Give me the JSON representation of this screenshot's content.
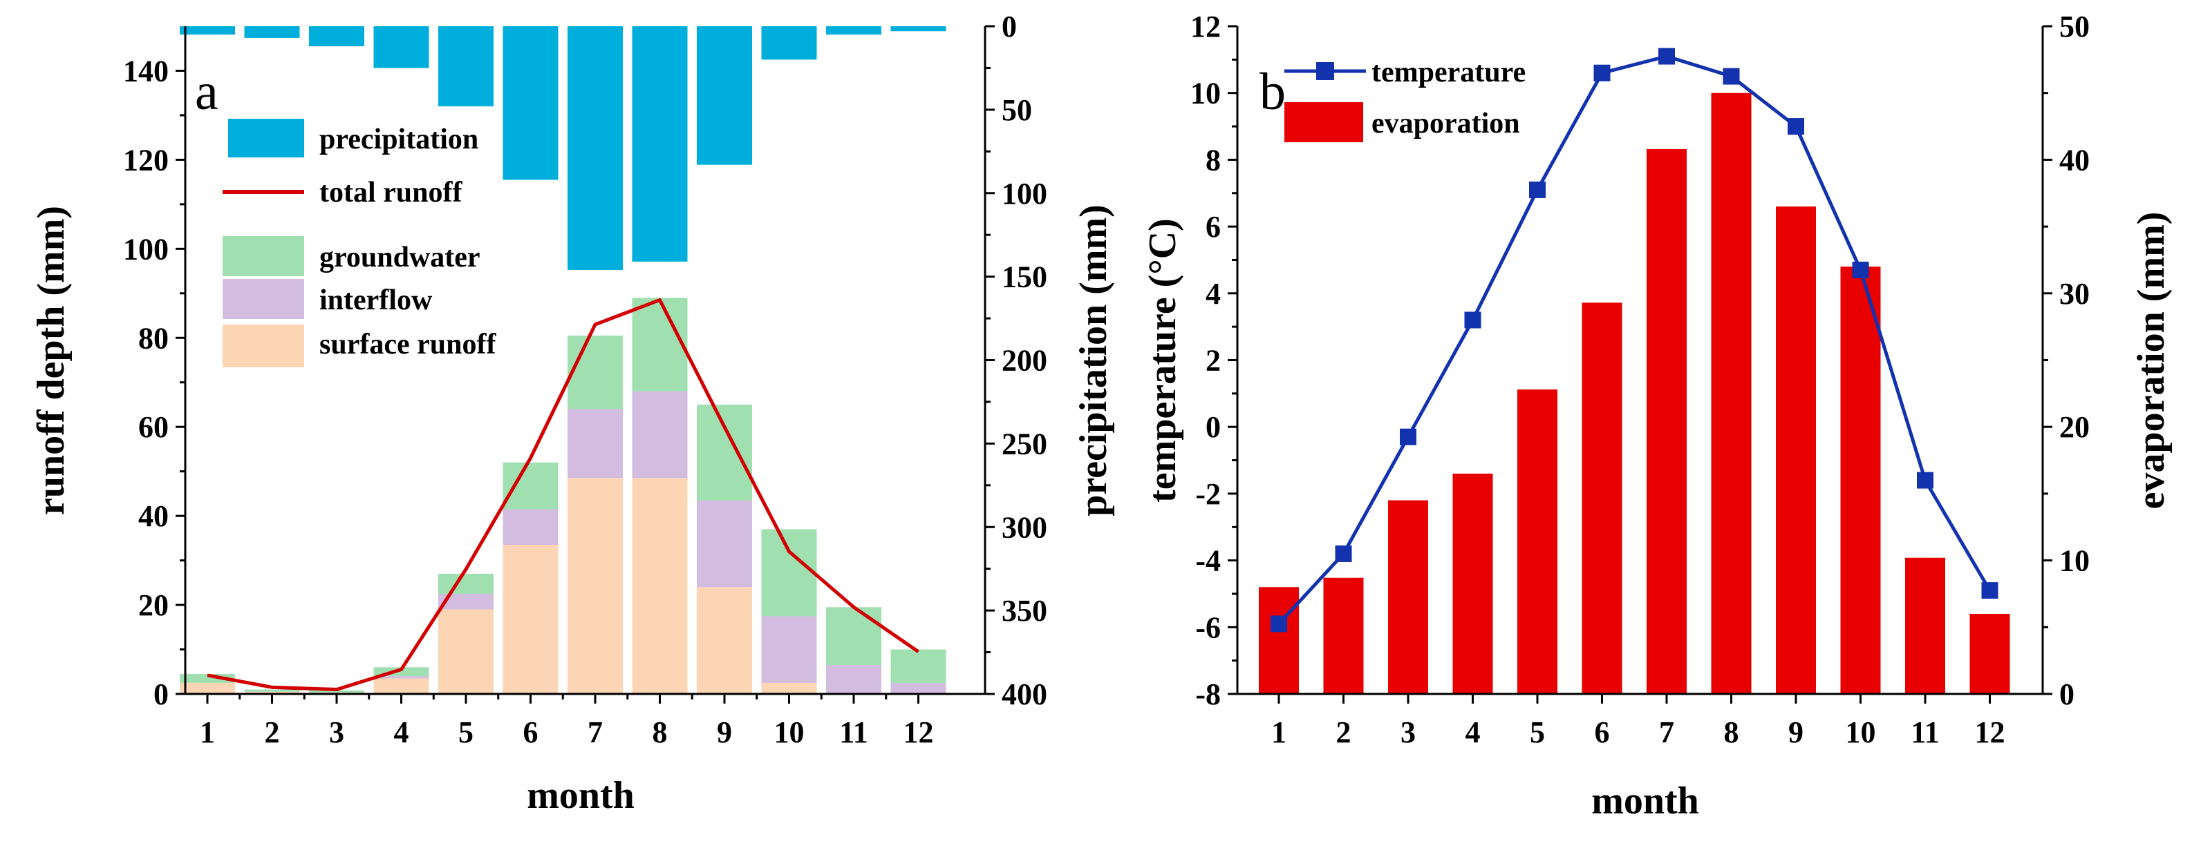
{
  "chart_data": [
    {
      "type": "bar",
      "panel_label": "a",
      "categories": [
        "1",
        "2",
        "3",
        "4",
        "5",
        "6",
        "7",
        "8",
        "9",
        "10",
        "11",
        "12"
      ],
      "xlabel": "month",
      "ylabel": "runoff depth (mm)",
      "ylim": [
        0,
        150
      ],
      "yticks": [
        0,
        20,
        40,
        60,
        80,
        100,
        120,
        140
      ],
      "y2label": "precipitation (mm)",
      "y2lim": [
        0,
        400
      ],
      "y2ticks": [
        0,
        50,
        100,
        150,
        200,
        250,
        300,
        350,
        400
      ],
      "y2_inverted": true,
      "series": [
        {
          "name": "precipitation",
          "kind": "bar",
          "axis": "right",
          "color": "#00AEDB",
          "values": [
            5,
            7,
            12,
            25,
            48,
            92,
            146,
            141,
            83,
            20,
            5,
            3
          ]
        },
        {
          "name": "surface runoff",
          "kind": "stacked-bar",
          "axis": "left",
          "color": "#FCD5B5",
          "values": [
            2.5,
            0.5,
            0.3,
            3.5,
            19,
            33.5,
            48.5,
            48.5,
            24,
            2.5,
            0,
            0
          ]
        },
        {
          "name": "interflow",
          "kind": "stacked-bar",
          "axis": "left",
          "color": "#D2BCE0",
          "values": [
            0,
            0,
            0,
            0.5,
            3.5,
            8,
            15.5,
            19.5,
            19.5,
            15,
            6.5,
            2.5
          ]
        },
        {
          "name": "groundwater",
          "kind": "stacked-bar",
          "axis": "left",
          "color": "#A0DFB0",
          "values": [
            2,
            0.5,
            0.5,
            2,
            4.5,
            10.5,
            16.5,
            21,
            21.5,
            19.5,
            13,
            7.5
          ]
        },
        {
          "name": "total runoff",
          "kind": "line",
          "axis": "left",
          "color": "#D20000",
          "values": [
            4.2,
            1.5,
            1,
            5.5,
            28,
            53,
            83,
            88.5,
            60,
            32,
            19.5,
            9.5
          ]
        }
      ],
      "legend": [
        "precipitation",
        "total runoff",
        "groundwater",
        "interflow",
        "surface runoff"
      ],
      "legend_position": "top-left"
    },
    {
      "type": "bar",
      "panel_label": "b",
      "categories": [
        "1",
        "2",
        "3",
        "4",
        "5",
        "6",
        "7",
        "8",
        "9",
        "10",
        "11",
        "12"
      ],
      "xlabel": "month",
      "ylabel": "temperature (°C)",
      "ylim": [
        -8,
        12
      ],
      "yticks": [
        -8,
        -6,
        -4,
        -2,
        0,
        2,
        4,
        6,
        8,
        10,
        12
      ],
      "y2label": "evaporation (mm)",
      "y2lim": [
        0,
        50
      ],
      "y2ticks": [
        0,
        10,
        20,
        30,
        40,
        50
      ],
      "series": [
        {
          "name": "evaporation",
          "kind": "bar",
          "axis": "right",
          "color": "#E80000",
          "values": [
            8,
            8.7,
            14.5,
            16.5,
            22.8,
            29.3,
            40.8,
            45,
            36.5,
            32,
            10.2,
            6
          ]
        },
        {
          "name": "temperature",
          "kind": "line-marker",
          "axis": "left",
          "color": "#1232AE",
          "values": [
            -5.9,
            -3.8,
            -0.3,
            3.2,
            7.1,
            10.6,
            11.1,
            10.5,
            9,
            4.7,
            -1.6,
            -4.9
          ]
        }
      ],
      "legend": [
        "temperature",
        "evaporation"
      ],
      "legend_position": "top-left"
    }
  ]
}
